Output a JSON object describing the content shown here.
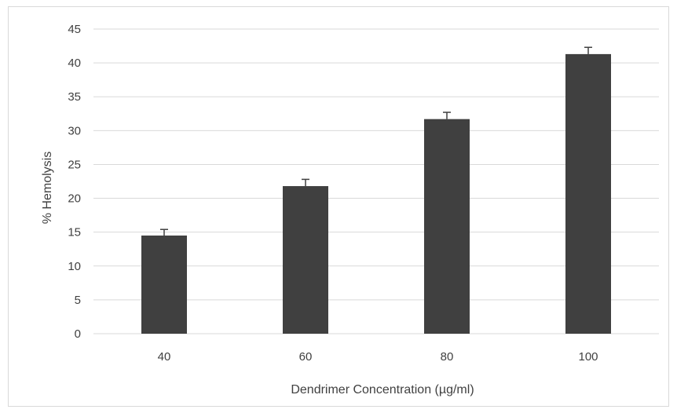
{
  "chart_data": {
    "type": "bar",
    "title": "",
    "xlabel": "Dendrimer Concentration (µg/ml)",
    "ylabel": "% Hemolysis",
    "categories": [
      "40",
      "60",
      "80",
      "100"
    ],
    "values": [
      14.5,
      21.8,
      31.7,
      41.3
    ],
    "errors": [
      0.9,
      1.0,
      1.0,
      1.0
    ],
    "ylim": [
      0,
      45
    ],
    "yticks": [
      "0",
      "5",
      "10",
      "15",
      "20",
      "25",
      "30",
      "35",
      "40",
      "45"
    ],
    "grid": true,
    "legend": "none",
    "bar_color": "#404040",
    "grid_color": "#d9d9d9"
  }
}
